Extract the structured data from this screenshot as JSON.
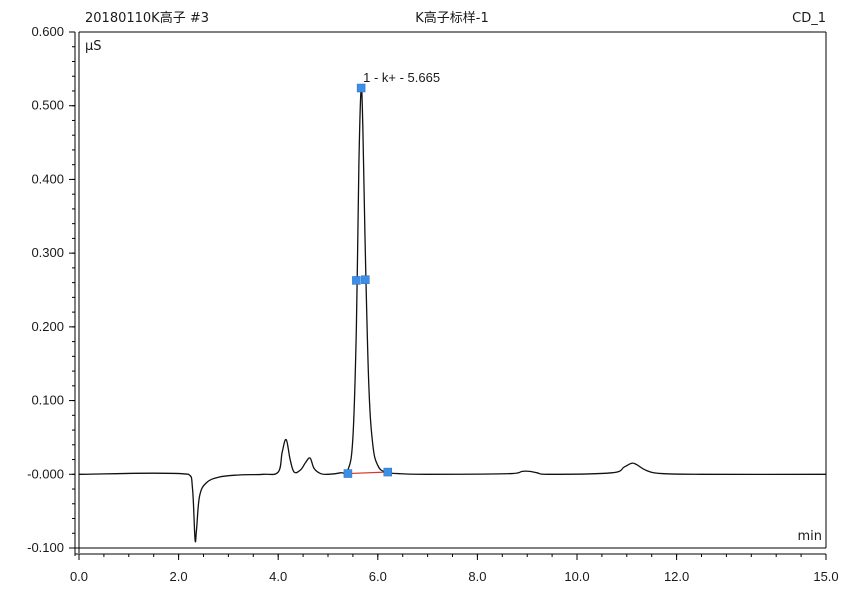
{
  "header": {
    "sample": "20180110K高子 #3",
    "name": "K高子标样-1",
    "channel": "CD_1"
  },
  "chart_data": {
    "type": "line",
    "title": "K高子标样-1",
    "ylabel": "µS",
    "xlabel": "min",
    "xlim": [
      0.0,
      15.0
    ],
    "ylim": [
      -0.1,
      0.6
    ],
    "x_ticks": [
      "0.0",
      "2.0",
      "4.0",
      "6.0",
      "8.0",
      "10.0",
      "12.0",
      "15.0"
    ],
    "x_tick_values": [
      0,
      2,
      4,
      6,
      8,
      10,
      12,
      15
    ],
    "y_ticks": [
      "-0.100",
      "-0.000",
      "0.100",
      "0.200",
      "0.300",
      "0.400",
      "0.500",
      "0.600"
    ],
    "y_tick_values": [
      -0.1,
      0.0,
      0.1,
      0.2,
      0.3,
      0.4,
      0.5,
      0.6
    ],
    "grid": false,
    "series": [
      {
        "color": "#111111",
        "x": [
          0.0,
          2.2,
          2.28,
          2.33,
          2.36,
          2.42,
          2.55,
          2.8,
          3.2,
          3.7,
          4.0,
          4.08,
          4.16,
          4.24,
          4.32,
          4.45,
          4.55,
          4.64,
          4.72,
          4.85,
          5.0,
          5.25,
          5.4,
          5.5,
          5.57,
          5.62,
          5.665,
          5.7,
          5.75,
          5.82,
          5.9,
          6.0,
          6.15,
          6.4,
          7.0,
          8.7,
          8.9,
          9.05,
          9.2,
          9.4,
          10.7,
          10.95,
          11.1,
          11.2,
          11.4,
          11.7,
          12.5,
          15.0
        ],
        "y": [
          0.0,
          0.0,
          -0.02,
          -0.088,
          -0.075,
          -0.03,
          -0.012,
          -0.004,
          -0.001,
          0.0,
          0.003,
          0.03,
          0.047,
          0.02,
          0.003,
          0.006,
          0.016,
          0.022,
          0.008,
          0.001,
          0.0,
          0.002,
          0.006,
          0.05,
          0.2,
          0.42,
          0.522,
          0.47,
          0.3,
          0.12,
          0.04,
          0.012,
          0.003,
          0.001,
          0.0,
          0.001,
          0.004,
          0.004,
          0.002,
          0.0,
          0.002,
          0.01,
          0.015,
          0.013,
          0.005,
          0.001,
          0.0,
          0.0
        ]
      }
    ],
    "integration_baseline": {
      "x": [
        5.4,
        6.2
      ],
      "y": [
        0.001,
        0.003
      ],
      "color": "#d9342b"
    },
    "markers": {
      "color": "#3d8ee6",
      "x": [
        5.4,
        5.57,
        5.665,
        5.75,
        6.2
      ],
      "y": [
        0.001,
        0.263,
        0.524,
        0.264,
        0.003
      ]
    },
    "annotations": [
      {
        "text": "1 - k+ - 5.665",
        "x": 5.665,
        "y": 0.524
      }
    ]
  }
}
